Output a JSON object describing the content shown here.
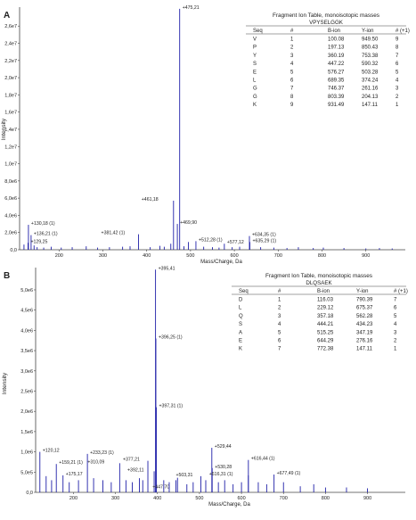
{
  "chart_data": [
    {
      "panel": "A",
      "type": "bar",
      "xlabel": "Mass/Charge, Da",
      "ylabel": "Intensity",
      "xlim": [
        110,
        990
      ],
      "ylim": [
        0,
        28200000
      ],
      "xticks": [
        200,
        300,
        400,
        500,
        600,
        700,
        800,
        900
      ],
      "yticks": [
        {
          "v": 0,
          "label": "0,0"
        },
        {
          "v": 2000000,
          "label": "2,0e6"
        },
        {
          "v": 4000000,
          "label": "4,0e6"
        },
        {
          "v": 6000000,
          "label": "6,0e6"
        },
        {
          "v": 8000000,
          "label": "8,0e6"
        },
        {
          "v": 10000000,
          "label": "1,0e7"
        },
        {
          "v": 12000000,
          "label": "1,2e7"
        },
        {
          "v": 14000000,
          "label": "1,4e7"
        },
        {
          "v": 16000000,
          "label": "1,6e7"
        },
        {
          "v": 18000000,
          "label": "1,8e7"
        },
        {
          "v": 20000000,
          "label": "2,0e7"
        },
        {
          "v": 22000000,
          "label": "2,2e7"
        },
        {
          "v": 24000000,
          "label": "2,4e7"
        },
        {
          "v": 26000000,
          "label": "2,6e7"
        }
      ],
      "peaks": [
        {
          "x": 475.21,
          "y": 28000000,
          "label": "475,21"
        },
        {
          "x": 461.18,
          "y": 5700000,
          "label": "461,18"
        },
        {
          "x": 469.9,
          "y": 3000000,
          "label": "469,90"
        },
        {
          "x": 381.42,
          "y": 1800000,
          "label": "381,42 (1)"
        },
        {
          "x": 130.18,
          "y": 2900000,
          "label": "130,18 (1)"
        },
        {
          "x": 136.21,
          "y": 1700000,
          "label": "136,21 (1)"
        },
        {
          "x": 129.25,
          "y": 800000,
          "label": "129,25"
        },
        {
          "x": 512.28,
          "y": 1000000,
          "label": "512,28 (1)"
        },
        {
          "x": 577.12,
          "y": 700000,
          "label": "577,12"
        },
        {
          "x": 634.35,
          "y": 1600000,
          "label": "634,35 (1)"
        },
        {
          "x": 635.29,
          "y": 900000,
          "label": "635,29 (1)"
        },
        {
          "x": 495.0,
          "y": 900000
        },
        {
          "x": 455.0,
          "y": 700000
        },
        {
          "x": 120.0,
          "y": 600000
        },
        {
          "x": 143.0,
          "y": 500000
        },
        {
          "x": 150.0,
          "y": 300000
        },
        {
          "x": 165.0,
          "y": 250000
        },
        {
          "x": 182.0,
          "y": 350000
        },
        {
          "x": 205.0,
          "y": 250000
        },
        {
          "x": 230.0,
          "y": 300000
        },
        {
          "x": 262.0,
          "y": 400000
        },
        {
          "x": 288.0,
          "y": 250000
        },
        {
          "x": 315.0,
          "y": 300000
        },
        {
          "x": 345.0,
          "y": 350000
        },
        {
          "x": 362.0,
          "y": 400000
        },
        {
          "x": 408.0,
          "y": 300000
        },
        {
          "x": 430.0,
          "y": 450000
        },
        {
          "x": 440.0,
          "y": 350000
        },
        {
          "x": 485.0,
          "y": 400000
        },
        {
          "x": 530.0,
          "y": 350000
        },
        {
          "x": 550.0,
          "y": 300000
        },
        {
          "x": 565.0,
          "y": 250000
        },
        {
          "x": 595.0,
          "y": 300000
        },
        {
          "x": 612.0,
          "y": 350000
        },
        {
          "x": 660.0,
          "y": 300000
        },
        {
          "x": 690.0,
          "y": 250000
        },
        {
          "x": 720.0,
          "y": 200000
        },
        {
          "x": 746.0,
          "y": 300000
        },
        {
          "x": 780.0,
          "y": 200000
        },
        {
          "x": 803.0,
          "y": 250000
        },
        {
          "x": 850.0,
          "y": 200000
        },
        {
          "x": 900.0,
          "y": 150000
        },
        {
          "x": 931.0,
          "y": 200000
        },
        {
          "x": 960.0,
          "y": 150000
        }
      ],
      "table": {
        "title": "Fragment Ion Table, monoisotopic masses",
        "peptide": "VPYSELGGK",
        "headers": [
          "Seq",
          "#",
          "B-ion",
          "Y-ion",
          "# (+1)"
        ],
        "rows": [
          [
            "V",
            "1",
            "100.08",
            "949.50",
            "9"
          ],
          [
            "P",
            "2",
            "197.13",
            "850.43",
            "8"
          ],
          [
            "Y",
            "3",
            "360.19",
            "753.38",
            "7"
          ],
          [
            "S",
            "4",
            "447.22",
            "590.32",
            "6"
          ],
          [
            "E",
            "5",
            "576.27",
            "503.28",
            "5"
          ],
          [
            "L",
            "6",
            "689.35",
            "374.24",
            "4"
          ],
          [
            "G",
            "7",
            "746.37",
            "261.16",
            "3"
          ],
          [
            "G",
            "8",
            "803.39",
            "204.13",
            "2"
          ],
          [
            "K",
            "9",
            "931.49",
            "147.11",
            "1"
          ]
        ]
      }
    },
    {
      "panel": "B",
      "type": "bar",
      "xlabel": "Mass/Charge, Da",
      "ylabel": "Intensity",
      "xlim": [
        110,
        990
      ],
      "ylim": [
        0,
        5550000
      ],
      "xticks": [
        200,
        300,
        400,
        500,
        600,
        700,
        800,
        900
      ],
      "yticks": [
        {
          "v": 0,
          "label": "0,0"
        },
        {
          "v": 500000,
          "label": "5,0e5"
        },
        {
          "v": 1000000,
          "label": "1,0e6"
        },
        {
          "v": 1500000,
          "label": "1,5e6"
        },
        {
          "v": 2000000,
          "label": "2,0e6"
        },
        {
          "v": 2500000,
          "label": "2,5e6"
        },
        {
          "v": 3000000,
          "label": "3,0e6"
        },
        {
          "v": 3500000,
          "label": "3,5e6"
        },
        {
          "v": 4000000,
          "label": "4,0e6"
        },
        {
          "v": 4500000,
          "label": "4,5e6"
        },
        {
          "v": 5000000,
          "label": "5,0e6"
        }
      ],
      "peaks": [
        {
          "x": 395.41,
          "y": 5500000,
          "label": "395,41"
        },
        {
          "x": 396.25,
          "y": 3800000,
          "label": "396,25 (1)"
        },
        {
          "x": 397.31,
          "y": 2100000,
          "label": "397,31 (1)"
        },
        {
          "x": 120.12,
          "y": 1000000,
          "label": "120,12"
        },
        {
          "x": 159.21,
          "y": 700000,
          "label": "159,21 (1)"
        },
        {
          "x": 175.17,
          "y": 420000,
          "label": "175,17"
        },
        {
          "x": 233.23,
          "y": 950000,
          "label": "233,23 (1)"
        },
        {
          "x": 310.09,
          "y": 720000,
          "label": "310,09"
        },
        {
          "x": 377.21,
          "y": 780000,
          "label": "377,21"
        },
        {
          "x": 392.11,
          "y": 520000,
          "label": "392,11"
        },
        {
          "x": 447.7,
          "y": 360000,
          "label": "447,70"
        },
        {
          "x": 503.31,
          "y": 400000,
          "label": "503,31"
        },
        {
          "x": 529.44,
          "y": 1100000,
          "label": "529,44"
        },
        {
          "x": 530.28,
          "y": 600000,
          "label": "530,28"
        },
        {
          "x": 616.31,
          "y": 420000,
          "label": "616,31 (1)"
        },
        {
          "x": 616.44,
          "y": 800000,
          "label": "616,44 (1)"
        },
        {
          "x": 677.49,
          "y": 440000,
          "label": "677,49 (1)"
        },
        {
          "x": 135.0,
          "y": 400000
        },
        {
          "x": 148.0,
          "y": 300000
        },
        {
          "x": 190.0,
          "y": 250000
        },
        {
          "x": 212.0,
          "y": 300000
        },
        {
          "x": 248.0,
          "y": 350000
        },
        {
          "x": 270.0,
          "y": 300000
        },
        {
          "x": 290.0,
          "y": 250000
        },
        {
          "x": 325.0,
          "y": 300000
        },
        {
          "x": 340.0,
          "y": 250000
        },
        {
          "x": 357.0,
          "y": 350000
        },
        {
          "x": 365.0,
          "y": 300000
        },
        {
          "x": 415.0,
          "y": 300000
        },
        {
          "x": 428.0,
          "y": 250000
        },
        {
          "x": 444.0,
          "y": 300000
        },
        {
          "x": 470.0,
          "y": 200000
        },
        {
          "x": 485.0,
          "y": 250000
        },
        {
          "x": 515.0,
          "y": 300000
        },
        {
          "x": 545.0,
          "y": 250000
        },
        {
          "x": 560.0,
          "y": 300000
        },
        {
          "x": 580.0,
          "y": 200000
        },
        {
          "x": 600.0,
          "y": 250000
        },
        {
          "x": 640.0,
          "y": 250000
        },
        {
          "x": 660.0,
          "y": 200000
        },
        {
          "x": 700.0,
          "y": 250000
        },
        {
          "x": 740.0,
          "y": 150000
        },
        {
          "x": 772.0,
          "y": 200000
        },
        {
          "x": 800.0,
          "y": 120000
        },
        {
          "x": 850.0,
          "y": 120000
        },
        {
          "x": 900.0,
          "y": 100000
        }
      ],
      "table": {
        "title": "Fragment Ion Table, monoisotopic masses",
        "peptide": "DLQSAEK",
        "headers": [
          "Seq",
          "#",
          "B-ion",
          "Y-ion",
          "# (+1)"
        ],
        "rows": [
          [
            "D",
            "1",
            "116.03",
            "790.39",
            "7"
          ],
          [
            "L",
            "2",
            "229.12",
            "675.37",
            "6"
          ],
          [
            "Q",
            "3",
            "357.18",
            "562.28",
            "5"
          ],
          [
            "S",
            "4",
            "444.21",
            "434.23",
            "4"
          ],
          [
            "A",
            "5",
            "515.25",
            "347.19",
            "3"
          ],
          [
            "E",
            "6",
            "644.29",
            "276.16",
            "2"
          ],
          [
            "K",
            "7",
            "772.38",
            "147.11",
            "1"
          ]
        ]
      }
    }
  ],
  "colors": {
    "peak": "#1f1fa8",
    "axis": "#444444",
    "text": "#222222"
  }
}
